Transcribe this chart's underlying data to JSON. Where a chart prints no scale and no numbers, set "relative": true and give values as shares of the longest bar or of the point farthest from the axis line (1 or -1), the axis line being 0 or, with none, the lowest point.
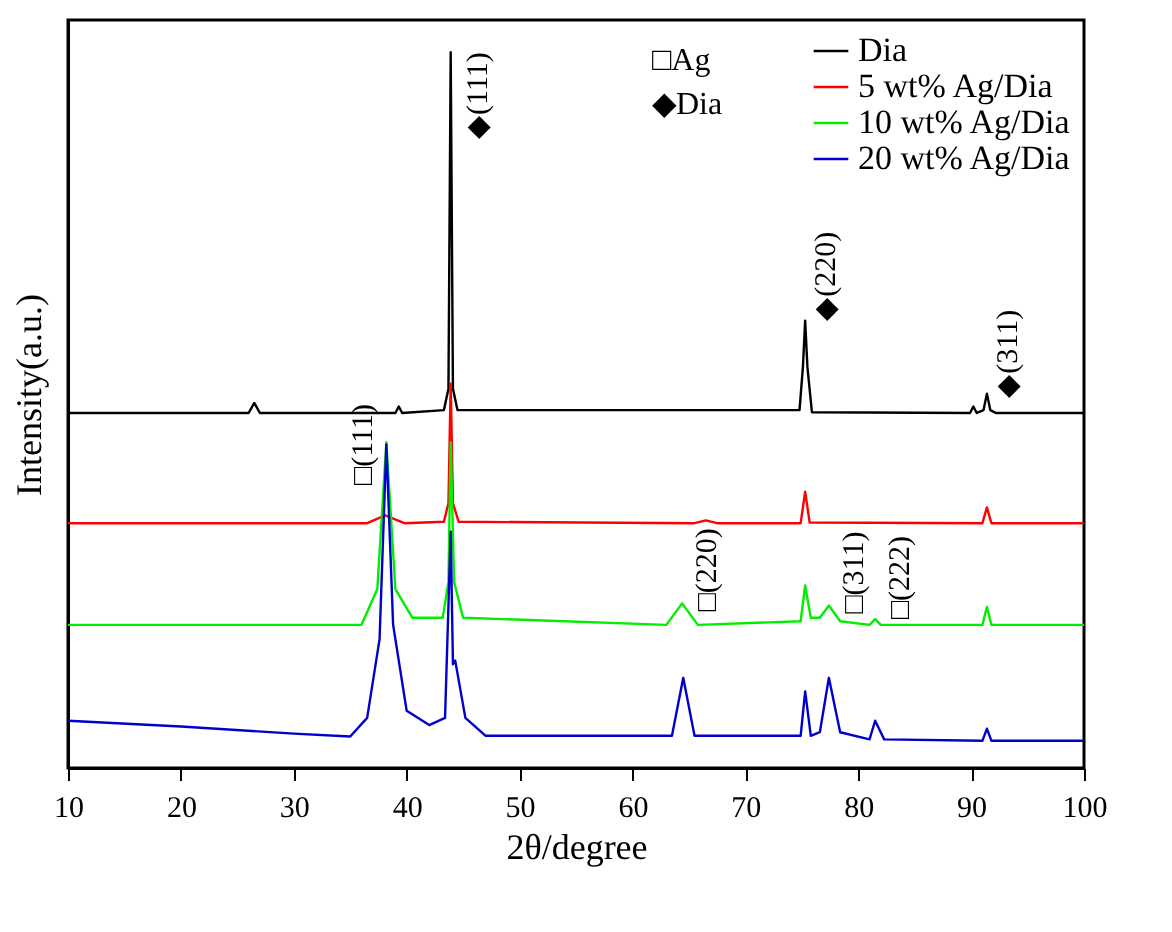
{
  "chart_data": {
    "type": "line",
    "relative": true,
    "xlabel": "2θ/degree",
    "ylabel": "Intensity(a.u.)",
    "xlim": [
      10,
      100
    ],
    "xticks": [
      10,
      20,
      30,
      40,
      50,
      60,
      70,
      80,
      90,
      100
    ],
    "legend": "top right",
    "grid": false,
    "marker": "none",
    "series": [
      {
        "name": "Dia",
        "color": "#000000",
        "x": [
          10,
          26,
          26.5,
          27,
          39,
          39.3,
          39.6,
          43.3,
          43.7,
          43.9,
          44.1,
          44.5,
          74.8,
          75.1,
          75.3,
          75.5,
          75.9,
          89.9,
          90.2,
          90.5,
          91.1,
          91.4,
          91.7,
          92.2,
          100
        ],
        "values": [
          0.496,
          0.496,
          0.51,
          0.496,
          0.496,
          0.505,
          0.496,
          0.5,
          0.53,
          1.0,
          0.53,
          0.5,
          0.5,
          0.56,
          0.625,
          0.56,
          0.497,
          0.496,
          0.505,
          0.496,
          0.5,
          0.523,
          0.5,
          0.496,
          0.496
        ]
      },
      {
        "name": "5  wt% Ag/Dia",
        "color": "#ff0000",
        "x": [
          10,
          36.5,
          38.1,
          39.8,
          43.3,
          43.7,
          43.9,
          44.1,
          44.6,
          65.5,
          66.5,
          67.5,
          74.9,
          75.3,
          75.7,
          91,
          91.4,
          91.8,
          100
        ],
        "values": [
          0.342,
          0.342,
          0.353,
          0.342,
          0.344,
          0.37,
          0.537,
          0.37,
          0.344,
          0.342,
          0.346,
          0.342,
          0.342,
          0.386,
          0.343,
          0.342,
          0.364,
          0.342,
          0.342
        ]
      },
      {
        "name": "10 wt% Ag/Dia",
        "color": "#00ee00",
        "x": [
          10,
          36,
          37.4,
          38.2,
          39,
          40.5,
          43.2,
          43.7,
          43.9,
          44.2,
          45,
          63,
          64.4,
          65.8,
          74.9,
          75.3,
          75.8,
          76.6,
          77.4,
          78.4,
          81,
          81.5,
          82,
          91,
          91.4,
          91.8,
          100
        ],
        "values": [
          0.2,
          0.2,
          0.25,
          0.455,
          0.25,
          0.21,
          0.21,
          0.26,
          0.455,
          0.26,
          0.21,
          0.2,
          0.23,
          0.2,
          0.205,
          0.255,
          0.21,
          0.21,
          0.227,
          0.205,
          0.2,
          0.208,
          0.2,
          0.2,
          0.225,
          0.2,
          0.2
        ]
      },
      {
        "name": "20 wt% Ag/Dia",
        "color": "#0000cc",
        "x": [
          10,
          20,
          30,
          35,
          36.5,
          37.6,
          38.2,
          38.8,
          40,
          42,
          43.4,
          43.9,
          44.1,
          44.3,
          45.2,
          47,
          63.5,
          64.5,
          65.5,
          74.9,
          75.3,
          75.8,
          76.6,
          77.4,
          78.4,
          81,
          81.5,
          82.3,
          91,
          91.4,
          91.8,
          100
        ],
        "values": [
          0.066,
          0.058,
          0.048,
          0.044,
          0.07,
          0.18,
          0.452,
          0.2,
          0.08,
          0.06,
          0.07,
          0.33,
          0.145,
          0.15,
          0.07,
          0.045,
          0.045,
          0.126,
          0.045,
          0.045,
          0.107,
          0.045,
          0.05,
          0.126,
          0.05,
          0.04,
          0.066,
          0.04,
          0.038,
          0.055,
          0.038,
          0.038
        ]
      }
    ],
    "annotations": [
      "□Ag",
      "◆Dia",
      {
        "text": "◆(111)",
        "x": 43.9,
        "y": 1.0
      },
      {
        "text": "◆(220)",
        "x": 75.3,
        "y": 0.625
      },
      {
        "text": "◆(311)",
        "x": 91.4,
        "y": 0.523
      },
      {
        "text": "□(111)",
        "x": 38.2,
        "y": 0.452
      },
      {
        "text": "□(220)",
        "x": 64.4,
        "y": 0.23
      },
      {
        "text": "□(311)",
        "x": 77.4,
        "y": 0.227
      },
      {
        "text": "□(222)",
        "x": 81.5,
        "y": 0.208
      }
    ]
  }
}
